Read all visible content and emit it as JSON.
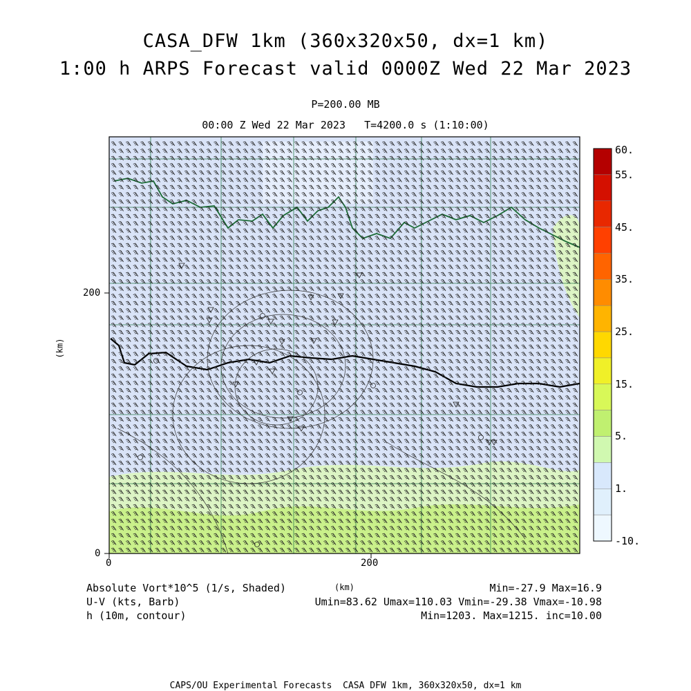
{
  "title": {
    "line1": "CASA_DFW 1km (360x320x50, dx=1 km)",
    "line2": "1:00 h ARPS Forecast valid 0000Z Wed 22 Mar 2023"
  },
  "pressure_level": "P=200.00 MB",
  "valid_time": "00:00 Z Wed 22 Mar 2023   T=4200.0 s (1:10:00)",
  "axes": {
    "xlabel": "(km)",
    "ylabel": "(km)",
    "x_ticks": [
      "0",
      "200"
    ],
    "y_ticks": [
      "0",
      "200"
    ]
  },
  "colorbar": {
    "labels": [
      "60.",
      "55.",
      "45.",
      "35.",
      "25.",
      "15.",
      "5.",
      "1.",
      "-10."
    ],
    "colors": [
      "#b40000",
      "#d41000",
      "#e82800",
      "#ff4000",
      "#ff6400",
      "#ff8c00",
      "#ffb400",
      "#ffd800",
      "#f0f028",
      "#d8f858",
      "#c0f070",
      "#d0f8b0",
      "#d8e8fc",
      "#e0f0fc",
      "#eef8ff"
    ]
  },
  "legend": {
    "field1": "Absolute Vort*10^5 (1/s, Shaded)",
    "field2": "U-V (kts, Barb)",
    "field3": "h (10m, contour)",
    "stats1": "Min=-27.9 Max=16.9",
    "stats2": "Umin=83.62 Umax=110.03 Vmin=-29.38 Vmax=-10.98",
    "stats3": "Min=1203. Max=1215. inc=10.00"
  },
  "footer": "CAPS/OU Experimental Forecasts  CASA DFW 1km, 360x320x50, dx=1 km",
  "colors": {
    "background_field": "#d8e2f8",
    "county_lines": "#2e7d4f",
    "rivers": "#1b6b35",
    "barbs": "#222222"
  }
}
